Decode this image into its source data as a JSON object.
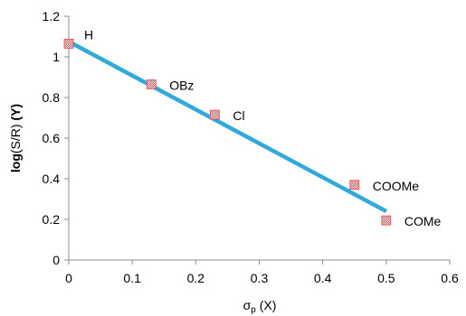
{
  "chart_data": {
    "type": "scatter",
    "title": "",
    "xlabel": {
      "base": "σ",
      "sub": "p",
      "suffix": " (X)"
    },
    "ylabel": {
      "prefix": "log",
      "main": "(S/R) ",
      "bold": "(Y)"
    },
    "xlim": [
      0,
      0.6
    ],
    "ylim": [
      0,
      1.2
    ],
    "x_ticks": [
      "0",
      "0.1",
      "0.2",
      "0.3",
      "0.4",
      "0.5",
      "0.6"
    ],
    "y_ticks": [
      "0",
      "0.2",
      "0.4",
      "0.6",
      "0.8",
      "1",
      "1.2"
    ],
    "grid": false,
    "series": [
      {
        "points": [
          {
            "label": "H",
            "x": 0.0,
            "y": 1.065
          },
          {
            "label": "OBz",
            "x": 0.13,
            "y": 0.865
          },
          {
            "label": "Cl",
            "x": 0.23,
            "y": 0.715
          },
          {
            "label": "COOMe",
            "x": 0.45,
            "y": 0.37
          },
          {
            "label": "COMe",
            "x": 0.5,
            "y": 0.195
          }
        ],
        "marker_color": "#e8484c"
      }
    ],
    "trendline": {
      "x": [
        0.0,
        0.5
      ],
      "y": [
        1.075,
        0.24
      ],
      "color": "#2eaade"
    }
  }
}
